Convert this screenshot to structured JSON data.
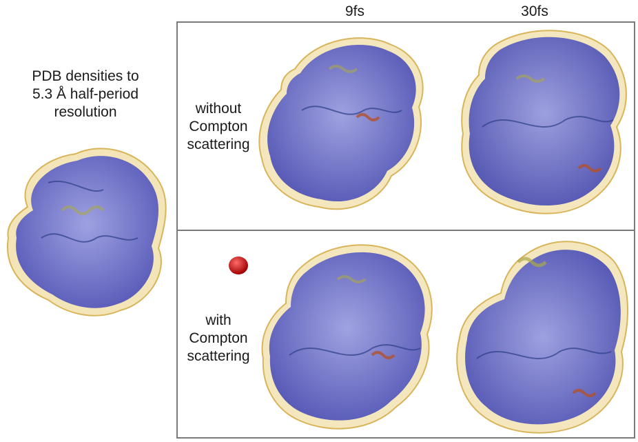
{
  "reference": {
    "label": "PDB densities to\n5.3 Å half-period\nresolution"
  },
  "columns": [
    {
      "label": "9fs"
    },
    {
      "label": "30fs"
    }
  ],
  "rows": [
    {
      "label": "without\nCompton\nscattering"
    },
    {
      "label": "with\nCompton\nscattering"
    }
  ],
  "colors": {
    "density_outer": "#e9cf7c",
    "density_inner": "#5a5fd6",
    "ribbon_helix": "#a9a84a",
    "ribbon_strand": "#b3512a",
    "ribbon_coil": "#2c3e86",
    "marker": "#d0181c",
    "frame": "#7a7a7a"
  }
}
